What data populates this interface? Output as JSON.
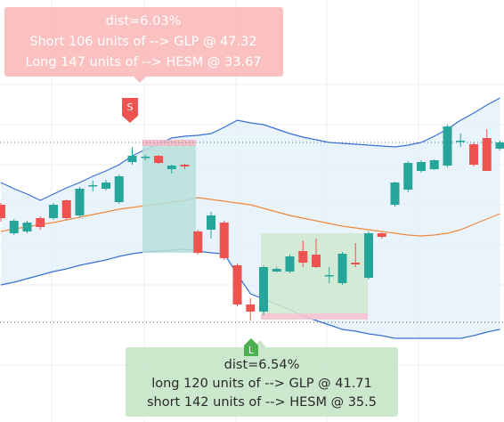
{
  "chart_data": {
    "type": "candlestick",
    "up_color": "#26a69a",
    "down_color": "#ef5350",
    "ylim": [
      0,
      474
    ],
    "open": [
      244,
      212,
      214,
      229,
      229,
      249,
      232,
      265,
      262,
      247,
      292,
      297,
      299,
      284,
      289,
      214,
      216,
      224,
      176,
      132,
      124,
      169,
      169,
      192,
      188,
      164,
      156,
      179,
      162,
      212,
      244,
      261,
      282,
      284,
      288,
      315,
      312,
      319,
      307
    ],
    "high": [
      246,
      228,
      226,
      231,
      246,
      250,
      264,
      271,
      272,
      278,
      309,
      300,
      300,
      289,
      290,
      216,
      236,
      226,
      178,
      139,
      176,
      174,
      188,
      204,
      206,
      174,
      191,
      201,
      214,
      213,
      270,
      293,
      294,
      295,
      334,
      324,
      314,
      329,
      316
    ],
    "low": [
      225,
      210,
      212,
      216,
      227,
      227,
      230,
      259,
      260,
      245,
      289,
      294,
      290,
      279,
      284,
      188,
      206,
      182,
      130,
      114,
      120,
      168,
      167,
      174,
      173,
      156,
      154,
      174,
      160,
      206,
      242,
      258,
      280,
      283,
      286,
      309,
      287,
      282,
      305
    ],
    "close": [
      229,
      226,
      224,
      219,
      244,
      229,
      262,
      266,
      269,
      276,
      299,
      298,
      291,
      288,
      287,
      190,
      232,
      184,
      132,
      124,
      174,
      172,
      186,
      179,
      174,
      165,
      189,
      177,
      212,
      208,
      269,
      291,
      292,
      294,
      332,
      316,
      289,
      282,
      314
    ],
    "bands": [
      {
        "color": "#3a6fd8",
        "values": [
          269,
          262,
          256,
          249,
          256,
          263,
          269,
          276,
          282,
          289,
          299,
          306,
          312,
          319,
          321,
          322,
          324,
          331,
          339,
          336,
          334,
          329,
          324,
          320,
          317,
          314,
          313,
          312,
          311,
          310,
          309,
          311,
          314,
          321,
          329,
          339,
          347,
          356,
          364
        ]
      },
      {
        "color": "#f08a3c",
        "values": [
          214,
          217,
          219,
          222,
          224,
          227,
          230,
          233,
          236,
          239,
          241,
          243,
          245,
          247,
          249,
          252,
          250,
          248,
          246,
          244,
          240,
          236,
          232,
          229,
          226,
          223,
          220,
          218,
          216,
          214,
          212,
          210,
          209,
          210,
          212,
          216,
          222,
          228,
          234
        ]
      },
      {
        "color": "#3a6fd8",
        "values": [
          154,
          157,
          161,
          165,
          169,
          172,
          176,
          179,
          182,
          186,
          189,
          191,
          192,
          193,
          194,
          192,
          190,
          189,
          166,
          144,
          138,
          132,
          126,
          119,
          114,
          109,
          104,
          102,
          99,
          97,
          94,
          94,
          94,
          94,
          94,
          94,
          97,
          101,
          104
        ]
      }
    ],
    "band_fill": "#e3f0fb",
    "annotations": [
      {
        "marker": "S",
        "lines": [
          "dist=6.03%",
          "Short 106 units of --> GLP @ 47.32",
          "Long 147 units of --> HESM @ 33.67"
        ]
      },
      {
        "marker": "L",
        "lines": [
          "dist=6.54%",
          "long 120 units of --> GLP @ 41.71",
          "short 142 units of --> HESM @ 35.5"
        ]
      }
    ]
  }
}
